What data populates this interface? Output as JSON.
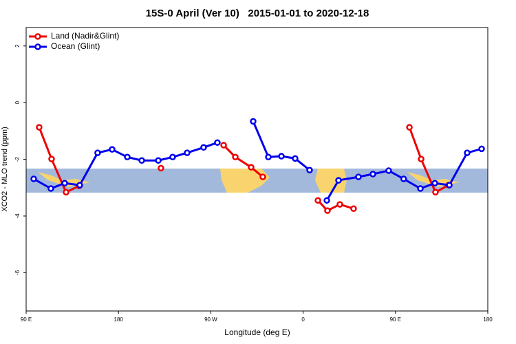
{
  "chart_data": {
    "type": "line",
    "title": "15S-0 April (Ver 10)   2015-01-01 to 2020-12-18",
    "x_label": "Longitude (deg E)",
    "y_label": "XCO2 - MLO trend (ppm)",
    "xlim": [
      90,
      540
    ],
    "xticks": [
      {
        "value": 90,
        "label": "90 E"
      },
      {
        "value": 180,
        "label": "180"
      },
      {
        "value": 270,
        "label": "90 W"
      },
      {
        "value": 360,
        "label": "0"
      },
      {
        "value": 450,
        "label": "90 E"
      },
      {
        "value": 540,
        "label": "180"
      }
    ],
    "ylim": [
      -7.35,
      2.65
    ],
    "yticks": [
      2,
      0,
      -2,
      -4,
      -6
    ],
    "legend": "top-left",
    "series": [
      {
        "name": "Land (Nadir&Glint)",
        "color": "#ee0000",
        "x": [
          102.7,
          114.8,
          128.9,
          141.6,
          null,
          221.4,
          null,
          282.5,
          293.9,
          309.3,
          320.7,
          null,
          374.4,
          383.7,
          395.8,
          409.2,
          null,
          463.6,
          475.0,
          489.0,
          501.8
        ],
        "values": [
          -0.87,
          -1.99,
          -3.16,
          -2.94,
          null,
          -2.31,
          null,
          -1.5,
          -1.92,
          -2.28,
          -2.62,
          null,
          -3.45,
          -3.81,
          -3.59,
          -3.74,
          null,
          -0.87,
          -1.99,
          -3.16,
          -2.91
        ]
      },
      {
        "name": "Ocean (Glint)",
        "color": "#0000ee",
        "x": [
          97.4,
          114.1,
          127.6,
          142.3,
          159.7,
          173.8,
          188.6,
          202.7,
          218.8,
          232.8,
          246.9,
          263.0,
          276.4,
          null,
          311.3,
          326.1,
          338.8,
          352.2,
          366.3,
          null,
          383.1,
          394.5,
          413.9,
          428.0,
          443.4,
          458.0,
          474.3,
          488.4,
          502.5,
          519.9,
          534.0
        ],
        "values": [
          -2.69,
          -3.03,
          -2.84,
          -2.91,
          -1.77,
          -1.65,
          -1.92,
          -2.04,
          -2.04,
          -1.92,
          -1.77,
          -1.58,
          -1.41,
          null,
          -0.66,
          -1.92,
          -1.89,
          -1.97,
          -2.38,
          null,
          -3.45,
          -2.74,
          -2.62,
          -2.52,
          -2.4,
          -2.69,
          -3.03,
          -2.84,
          -2.91,
          -1.77,
          -1.63
        ]
      }
    ]
  }
}
